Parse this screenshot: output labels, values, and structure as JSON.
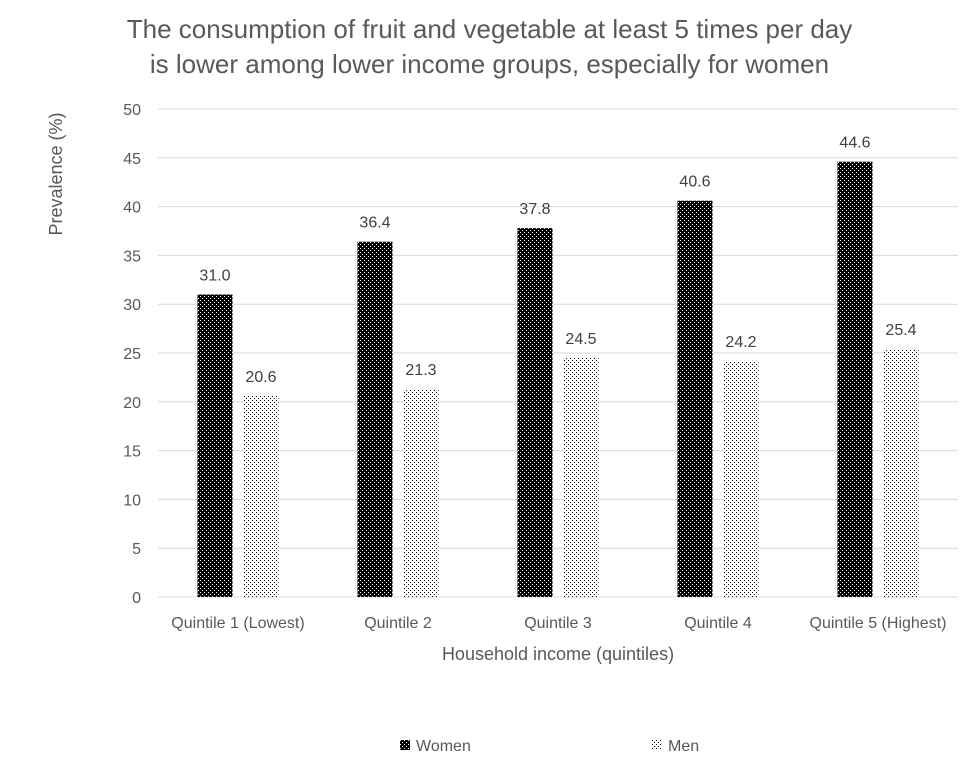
{
  "title_lines": [
    "The consumption of fruit and vegetable at least 5 times per day",
    "is lower among lower income groups, especially for women"
  ],
  "colors": {
    "women": "#000000",
    "men": "#ffffff",
    "grid": "#d9d9d9",
    "text": "#595959"
  },
  "chart_data": {
    "type": "bar",
    "title": "The consumption of fruit and vegetable at least 5 times per day is lower among lower income groups, especially for women",
    "xlabel": "Household income (quintiles)",
    "ylabel": "Prevalence (%)",
    "ylim": [
      0,
      50
    ],
    "ytick_step": 5,
    "grid": true,
    "legend_position": "bottom",
    "categories": [
      "Quintile 1 (Lowest)",
      "Quintile 2",
      "Quintile 3",
      "Quintile 4",
      "Quintile 5 (Highest)"
    ],
    "series": [
      {
        "name": "Women",
        "values": [
          31.0,
          36.4,
          37.8,
          40.6,
          44.6
        ],
        "pattern": "dense-dots"
      },
      {
        "name": "Men",
        "values": [
          20.6,
          21.3,
          24.5,
          24.2,
          25.4
        ],
        "pattern": "light-dots"
      }
    ],
    "data_labels": true
  }
}
